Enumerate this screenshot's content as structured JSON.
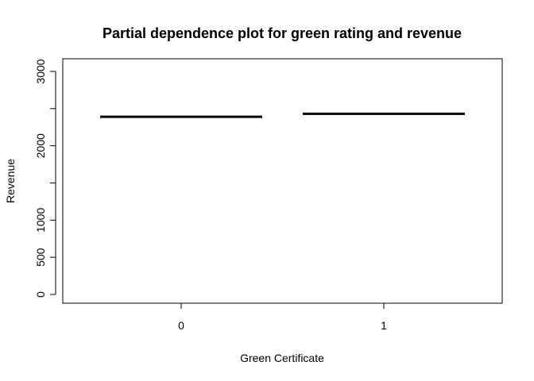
{
  "chart_data": {
    "type": "step",
    "title": "Partial dependence plot for green rating and revenue",
    "xlabel": "Green Certificate",
    "ylabel": "Revenue",
    "categories": [
      "0",
      "1"
    ],
    "values": [
      2390,
      2430
    ],
    "x_ticks": [
      "0",
      "1"
    ],
    "y_ticks": [
      0,
      500,
      1000,
      1500,
      2000,
      2500,
      3000
    ],
    "y_tick_labels": [
      "0",
      "500",
      "1000",
      "",
      "2000",
      "",
      "3000"
    ],
    "ylim": [
      0,
      3000
    ],
    "grid": false,
    "legend": "none",
    "line_color": "#000000"
  }
}
